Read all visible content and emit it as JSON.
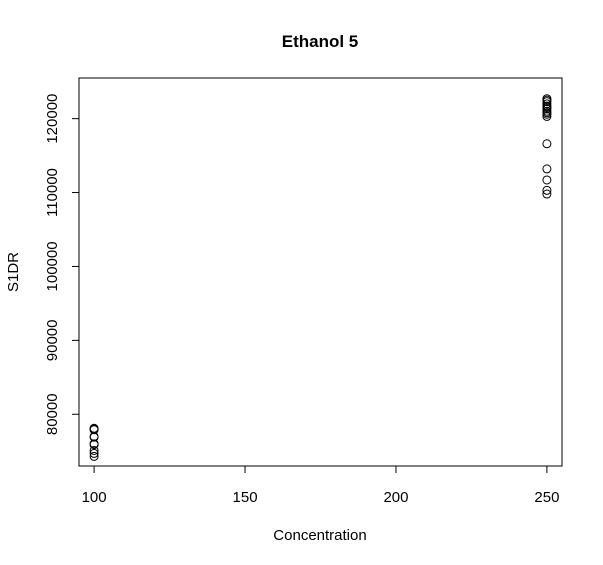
{
  "chart_data": {
    "type": "scatter",
    "title": "Ethanol 5",
    "xlabel": "Concentration",
    "ylabel": "S1DR",
    "xlim": [
      95,
      255
    ],
    "ylim": [
      73000,
      125500
    ],
    "xticks": [
      100,
      150,
      200,
      250
    ],
    "yticks": [
      80000,
      90000,
      100000,
      110000,
      120000
    ],
    "xtick_labels": [
      "100",
      "150",
      "200",
      "250"
    ],
    "ytick_labels": [
      "80000",
      "90000",
      "100000",
      "110000",
      "120000"
    ],
    "grid": false,
    "series": [
      {
        "x": [
          100,
          100,
          100,
          100,
          100,
          100,
          100,
          100,
          100,
          100,
          250,
          250,
          250,
          250,
          250,
          250,
          250,
          250,
          250,
          250,
          250,
          250,
          250,
          250,
          250,
          250
        ],
        "y": [
          78100,
          77900,
          77000,
          76000,
          75100,
          74700,
          74300,
          76900,
          75900,
          78000,
          122700,
          122300,
          122000,
          121700,
          121300,
          121000,
          120600,
          120300,
          116600,
          113200,
          111700,
          110300,
          109800,
          122500,
          121500,
          120800
        ]
      }
    ]
  }
}
